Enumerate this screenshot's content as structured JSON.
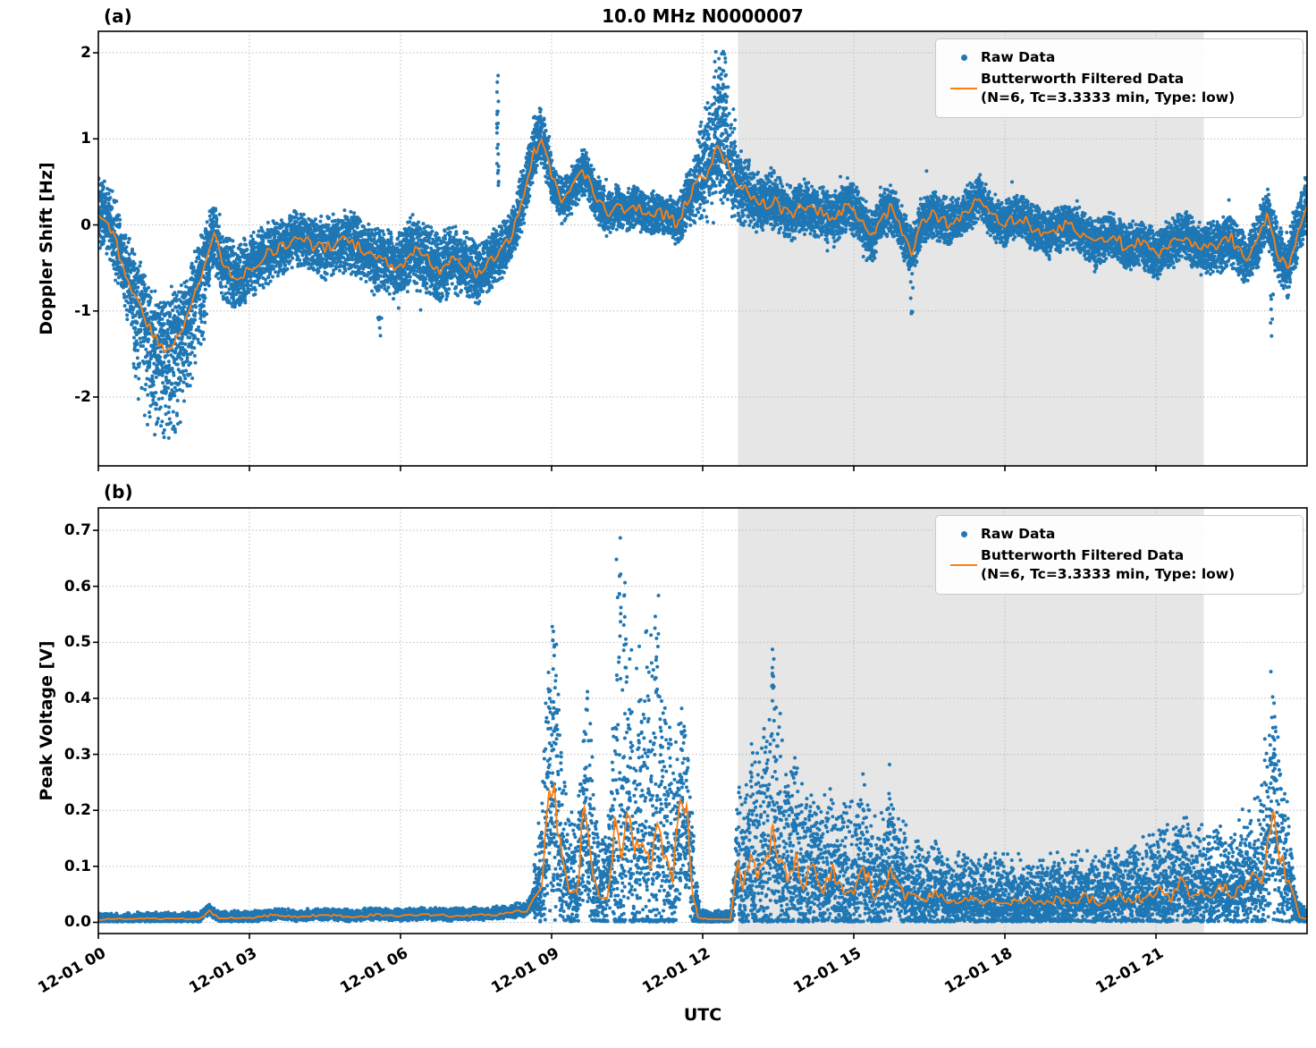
{
  "figure": {
    "xlabel": "UTC",
    "background": "#ffffff"
  },
  "style": {
    "raw_color": "#1f77b4",
    "filtered_color": "#ff7f0e",
    "shade_color": "#e6e6e6",
    "grid_color": "#bbbbbb",
    "spine_color": "#000000"
  },
  "chart_data": [
    {
      "type": "scatter+line",
      "panel_label": "(a)",
      "title": "10.0 MHz N0000007",
      "ylabel": "Doppler Shift [Hz]",
      "ylim": [
        -2.8,
        2.25
      ],
      "yticks": [
        -2,
        -1,
        0,
        1,
        2
      ],
      "ytick_labels": [
        "-2",
        "-1",
        "0",
        "1",
        "2"
      ],
      "x_hours_range": [
        0,
        24
      ],
      "xticks_hours": [
        0,
        3,
        6,
        9,
        12,
        15,
        18,
        21
      ],
      "xtick_labels": [
        "12-01 00",
        "12-01 03",
        "12-01 06",
        "12-01 09",
        "12-01 12",
        "12-01 15",
        "12-01 18",
        "12-01 21"
      ],
      "show_xtick_labels": false,
      "shaded_hours": [
        12.7,
        21.95
      ],
      "grid": true,
      "legend_position": "upper right",
      "legend": {
        "raw": "Raw Data",
        "filtered_1": "Butterworth Filtered Data",
        "filtered_2": "(N=6, Tc=3.3333 min, Type: low)"
      },
      "filtered_line_points": [
        [
          0,
          0.15
        ],
        [
          0.2,
          0.05
        ],
        [
          0.4,
          -0.3
        ],
        [
          0.7,
          -0.8
        ],
        [
          1.0,
          -1.2
        ],
        [
          1.3,
          -1.45
        ],
        [
          1.6,
          -1.3
        ],
        [
          1.85,
          -0.95
        ],
        [
          2.05,
          -0.55
        ],
        [
          2.3,
          -0.12
        ],
        [
          2.5,
          -0.5
        ],
        [
          2.8,
          -0.6
        ],
        [
          3.0,
          -0.5
        ],
        [
          3.3,
          -0.35
        ],
        [
          3.6,
          -0.28
        ],
        [
          3.9,
          -0.15
        ],
        [
          4.2,
          -0.22
        ],
        [
          4.5,
          -0.28
        ],
        [
          4.8,
          -0.18
        ],
        [
          5.1,
          -0.22
        ],
        [
          5.4,
          -0.38
        ],
        [
          5.7,
          -0.42
        ],
        [
          6.0,
          -0.48
        ],
        [
          6.2,
          -0.28
        ],
        [
          6.5,
          -0.38
        ],
        [
          6.8,
          -0.52
        ],
        [
          7.0,
          -0.38
        ],
        [
          7.3,
          -0.48
        ],
        [
          7.6,
          -0.58
        ],
        [
          7.8,
          -0.4
        ],
        [
          8.0,
          -0.32
        ],
        [
          8.2,
          -0.12
        ],
        [
          8.45,
          0.3
        ],
        [
          8.65,
          0.85
        ],
        [
          8.8,
          1.0
        ],
        [
          9.0,
          0.55
        ],
        [
          9.2,
          0.28
        ],
        [
          9.45,
          0.45
        ],
        [
          9.65,
          0.62
        ],
        [
          9.9,
          0.32
        ],
        [
          10.1,
          0.12
        ],
        [
          10.3,
          0.22
        ],
        [
          10.5,
          0.15
        ],
        [
          10.7,
          0.22
        ],
        [
          10.9,
          0.1
        ],
        [
          11.1,
          0.18
        ],
        [
          11.3,
          0.1
        ],
        [
          11.5,
          0.02
        ],
        [
          11.7,
          0.28
        ],
        [
          11.9,
          0.5
        ],
        [
          12.1,
          0.62
        ],
        [
          12.3,
          0.88
        ],
        [
          12.5,
          0.72
        ],
        [
          12.7,
          0.48
        ],
        [
          12.9,
          0.38
        ],
        [
          13.1,
          0.22
        ],
        [
          13.4,
          0.28
        ],
        [
          13.7,
          0.12
        ],
        [
          14.0,
          0.22
        ],
        [
          14.3,
          0.16
        ],
        [
          14.6,
          0.06
        ],
        [
          14.9,
          0.26
        ],
        [
          15.1,
          0.12
        ],
        [
          15.35,
          -0.15
        ],
        [
          15.55,
          0.1
        ],
        [
          15.75,
          0.2
        ],
        [
          15.95,
          -0.05
        ],
        [
          16.15,
          -0.3
        ],
        [
          16.35,
          0.05
        ],
        [
          16.6,
          0.12
        ],
        [
          16.9,
          0.0
        ],
        [
          17.2,
          0.15
        ],
        [
          17.5,
          0.32
        ],
        [
          17.7,
          0.12
        ],
        [
          18.0,
          0.0
        ],
        [
          18.3,
          0.1
        ],
        [
          18.6,
          -0.05
        ],
        [
          18.9,
          -0.12
        ],
        [
          19.2,
          0.0
        ],
        [
          19.5,
          -0.1
        ],
        [
          19.8,
          -0.22
        ],
        [
          20.1,
          -0.1
        ],
        [
          20.4,
          -0.26
        ],
        [
          20.7,
          -0.2
        ],
        [
          21.0,
          -0.36
        ],
        [
          21.3,
          -0.2
        ],
        [
          21.6,
          -0.12
        ],
        [
          21.9,
          -0.3
        ],
        [
          22.2,
          -0.26
        ],
        [
          22.5,
          -0.16
        ],
        [
          22.8,
          -0.42
        ],
        [
          23.0,
          -0.2
        ],
        [
          23.2,
          0.12
        ],
        [
          23.4,
          -0.3
        ],
        [
          23.6,
          -0.52
        ],
        [
          23.8,
          -0.1
        ],
        [
          24,
          0.25
        ]
      ],
      "scatter_halfwidth_points": [
        [
          0,
          0.45
        ],
        [
          0.5,
          0.55
        ],
        [
          1.0,
          0.62
        ],
        [
          1.5,
          0.68
        ],
        [
          2.0,
          0.5
        ],
        [
          2.5,
          0.45
        ],
        [
          3,
          0.4
        ],
        [
          4,
          0.35
        ],
        [
          5,
          0.4
        ],
        [
          6,
          0.45
        ],
        [
          7,
          0.45
        ],
        [
          8,
          0.35
        ],
        [
          8.7,
          0.32
        ],
        [
          9.3,
          0.3
        ],
        [
          10,
          0.3
        ],
        [
          11,
          0.26
        ],
        [
          11.5,
          0.3
        ],
        [
          12,
          0.5
        ],
        [
          12.4,
          0.6
        ],
        [
          13,
          0.4
        ],
        [
          14,
          0.34
        ],
        [
          15,
          0.34
        ],
        [
          16,
          0.34
        ],
        [
          17,
          0.3
        ],
        [
          18,
          0.3
        ],
        [
          19,
          0.3
        ],
        [
          20,
          0.3
        ],
        [
          21,
          0.3
        ],
        [
          22,
          0.34
        ],
        [
          23,
          0.34
        ],
        [
          23.5,
          0.42
        ],
        [
          24,
          0.4
        ]
      ],
      "scatter": {
        "n": 16000,
        "seed": 42,
        "line_wiggle": 0.07,
        "skew_windows": [
          {
            "t0": 0.7,
            "t1": 2.15,
            "neg": 1.9
          },
          {
            "t0": 8.3,
            "t1": 9.0,
            "pos": 1.35
          },
          {
            "t0": 11.9,
            "t1": 12.65,
            "pos": 1.7
          }
        ],
        "outlier_prob": 0.004,
        "outlier_mult": 1.8
      },
      "extra_spikes": [
        {
          "t": 7.93,
          "dt": 0.02,
          "y0": 0.4,
          "y1": 1.95,
          "n": 22
        },
        {
          "t": 12.35,
          "dt": 0.12,
          "y0": 1.2,
          "y1": 2.02,
          "n": 40
        },
        {
          "t": 5.6,
          "dt": 0.05,
          "y0": -1.5,
          "y1": -1.0,
          "n": 6
        },
        {
          "t": 16.15,
          "dt": 0.03,
          "y0": -1.05,
          "y1": -0.6,
          "n": 6
        },
        {
          "t": 23.3,
          "dt": 0.03,
          "y0": -1.35,
          "y1": -0.8,
          "n": 8
        }
      ]
    },
    {
      "type": "scatter+line",
      "panel_label": "(b)",
      "title": "",
      "ylabel": "Peak Voltage [V]",
      "ylim": [
        -0.02,
        0.74
      ],
      "yticks": [
        0.0,
        0.1,
        0.2,
        0.3,
        0.4,
        0.5,
        0.6,
        0.7
      ],
      "ytick_labels": [
        "0.0",
        "0.1",
        "0.2",
        "0.3",
        "0.4",
        "0.5",
        "0.6",
        "0.7"
      ],
      "x_hours_range": [
        0,
        24
      ],
      "xticks_hours": [
        0,
        3,
        6,
        9,
        12,
        15,
        18,
        21
      ],
      "xtick_labels": [
        "12-01 00",
        "12-01 03",
        "12-01 06",
        "12-01 09",
        "12-01 12",
        "12-01 15",
        "12-01 18",
        "12-01 21"
      ],
      "show_xtick_labels": true,
      "shaded_hours": [
        12.7,
        21.95
      ],
      "grid": true,
      "legend_position": "upper right",
      "legend": {
        "raw": "Raw Data",
        "filtered_1": "Butterworth Filtered Data",
        "filtered_2": "(N=6, Tc=3.3333 min, Type: low)"
      },
      "filtered_line_points": [
        [
          0,
          0.005
        ],
        [
          0.5,
          0.006
        ],
        [
          1,
          0.007
        ],
        [
          1.5,
          0.006
        ],
        [
          2,
          0.007
        ],
        [
          2.2,
          0.02
        ],
        [
          2.4,
          0.008
        ],
        [
          3,
          0.008
        ],
        [
          3.5,
          0.013
        ],
        [
          4,
          0.01
        ],
        [
          4.5,
          0.013
        ],
        [
          5,
          0.01
        ],
        [
          5.5,
          0.013
        ],
        [
          6,
          0.011
        ],
        [
          6.5,
          0.013
        ],
        [
          7,
          0.012
        ],
        [
          7.5,
          0.013
        ],
        [
          8,
          0.015
        ],
        [
          8.5,
          0.02
        ],
        [
          8.8,
          0.07
        ],
        [
          8.95,
          0.22
        ],
        [
          9.05,
          0.235
        ],
        [
          9.2,
          0.12
        ],
        [
          9.35,
          0.06
        ],
        [
          9.5,
          0.05
        ],
        [
          9.65,
          0.21
        ],
        [
          9.8,
          0.1
        ],
        [
          9.95,
          0.05
        ],
        [
          10.1,
          0.045
        ],
        [
          10.25,
          0.17
        ],
        [
          10.4,
          0.12
        ],
        [
          10.5,
          0.19
        ],
        [
          10.65,
          0.11
        ],
        [
          10.8,
          0.17
        ],
        [
          10.95,
          0.09
        ],
        [
          11.1,
          0.16
        ],
        [
          11.25,
          0.12
        ],
        [
          11.4,
          0.08
        ],
        [
          11.55,
          0.2
        ],
        [
          11.68,
          0.19
        ],
        [
          11.8,
          0.06
        ],
        [
          11.9,
          0.01
        ],
        [
          12.1,
          0.005
        ],
        [
          12.55,
          0.005
        ],
        [
          12.7,
          0.1
        ],
        [
          12.8,
          0.06
        ],
        [
          12.95,
          0.12
        ],
        [
          13.1,
          0.08
        ],
        [
          13.25,
          0.1
        ],
        [
          13.4,
          0.16
        ],
        [
          13.55,
          0.1
        ],
        [
          13.7,
          0.08
        ],
        [
          13.85,
          0.11
        ],
        [
          14,
          0.07
        ],
        [
          14.2,
          0.1
        ],
        [
          14.4,
          0.06
        ],
        [
          14.6,
          0.09
        ],
        [
          14.8,
          0.05
        ],
        [
          15,
          0.06
        ],
        [
          15.2,
          0.1
        ],
        [
          15.4,
          0.05
        ],
        [
          15.6,
          0.06
        ],
        [
          15.8,
          0.1
        ],
        [
          16,
          0.05
        ],
        [
          16.3,
          0.04
        ],
        [
          16.6,
          0.05
        ],
        [
          16.9,
          0.035
        ],
        [
          17.2,
          0.045
        ],
        [
          17.5,
          0.035
        ],
        [
          17.8,
          0.04
        ],
        [
          18.1,
          0.035
        ],
        [
          18.4,
          0.04
        ],
        [
          18.7,
          0.035
        ],
        [
          19,
          0.04
        ],
        [
          19.3,
          0.035
        ],
        [
          19.6,
          0.045
        ],
        [
          19.9,
          0.035
        ],
        [
          20.2,
          0.05
        ],
        [
          20.5,
          0.04
        ],
        [
          20.8,
          0.045
        ],
        [
          21.1,
          0.06
        ],
        [
          21.3,
          0.04
        ],
        [
          21.5,
          0.08
        ],
        [
          21.7,
          0.05
        ],
        [
          21.9,
          0.06
        ],
        [
          22.1,
          0.05
        ],
        [
          22.3,
          0.07
        ],
        [
          22.5,
          0.05
        ],
        [
          22.7,
          0.06
        ],
        [
          22.9,
          0.08
        ],
        [
          23.1,
          0.07
        ],
        [
          23.3,
          0.21
        ],
        [
          23.45,
          0.12
        ],
        [
          23.6,
          0.08
        ],
        [
          23.75,
          0.04
        ],
        [
          23.85,
          0.01
        ],
        [
          24,
          0.005
        ]
      ],
      "scatter_halfwidth_points": [
        [
          0,
          0.008
        ],
        [
          8,
          0.01
        ],
        [
          8.6,
          0.012
        ],
        [
          8.9,
          0.18
        ],
        [
          9.05,
          0.25
        ],
        [
          9.3,
          0.12
        ],
        [
          9.5,
          0.1
        ],
        [
          9.7,
          0.2
        ],
        [
          9.95,
          0.08
        ],
        [
          10.15,
          0.1
        ],
        [
          10.3,
          0.36
        ],
        [
          10.5,
          0.28
        ],
        [
          10.8,
          0.26
        ],
        [
          11.1,
          0.3
        ],
        [
          11.4,
          0.2
        ],
        [
          11.6,
          0.16
        ],
        [
          11.8,
          0.1
        ],
        [
          11.95,
          0.012
        ],
        [
          12.55,
          0.012
        ],
        [
          12.75,
          0.12
        ],
        [
          13,
          0.15
        ],
        [
          13.4,
          0.24
        ],
        [
          13.6,
          0.16
        ],
        [
          14,
          0.13
        ],
        [
          14.5,
          0.11
        ],
        [
          15,
          0.12
        ],
        [
          15.5,
          0.1
        ],
        [
          16,
          0.09
        ],
        [
          16.5,
          0.07
        ],
        [
          17,
          0.06
        ],
        [
          18,
          0.06
        ],
        [
          19,
          0.06
        ],
        [
          20,
          0.06
        ],
        [
          21,
          0.08
        ],
        [
          21.5,
          0.1
        ],
        [
          22,
          0.08
        ],
        [
          22.5,
          0.08
        ],
        [
          23,
          0.1
        ],
        [
          23.3,
          0.2
        ],
        [
          23.6,
          0.1
        ],
        [
          23.8,
          0.025
        ],
        [
          24,
          0.01
        ]
      ],
      "scatter": {
        "n": 13000,
        "seed": 7,
        "line_wiggle_rel": 0.18,
        "pos": 1.5,
        "clamp_min": 0.001,
        "outlier_prob": 0.002,
        "outlier_mult": 1.3
      },
      "extra_spikes": [
        {
          "t": 9.05,
          "dt": 0.03,
          "y0": 0.3,
          "y1": 0.48,
          "n": 8
        },
        {
          "t": 10.35,
          "dt": 0.04,
          "y0": 0.5,
          "y1": 0.7,
          "n": 10
        },
        {
          "t": 10.45,
          "dt": 0.03,
          "y0": 0.45,
          "y1": 0.62,
          "n": 8
        },
        {
          "t": 11.1,
          "dt": 0.03,
          "y0": 0.4,
          "y1": 0.585,
          "n": 8
        },
        {
          "t": 13.4,
          "dt": 0.03,
          "y0": 0.3,
          "y1": 0.465,
          "n": 8
        },
        {
          "t": 15.7,
          "dt": 0.02,
          "y0": 0.15,
          "y1": 0.3,
          "n": 5
        },
        {
          "t": 23.35,
          "dt": 0.02,
          "y0": 0.25,
          "y1": 0.43,
          "n": 6
        }
      ]
    }
  ]
}
